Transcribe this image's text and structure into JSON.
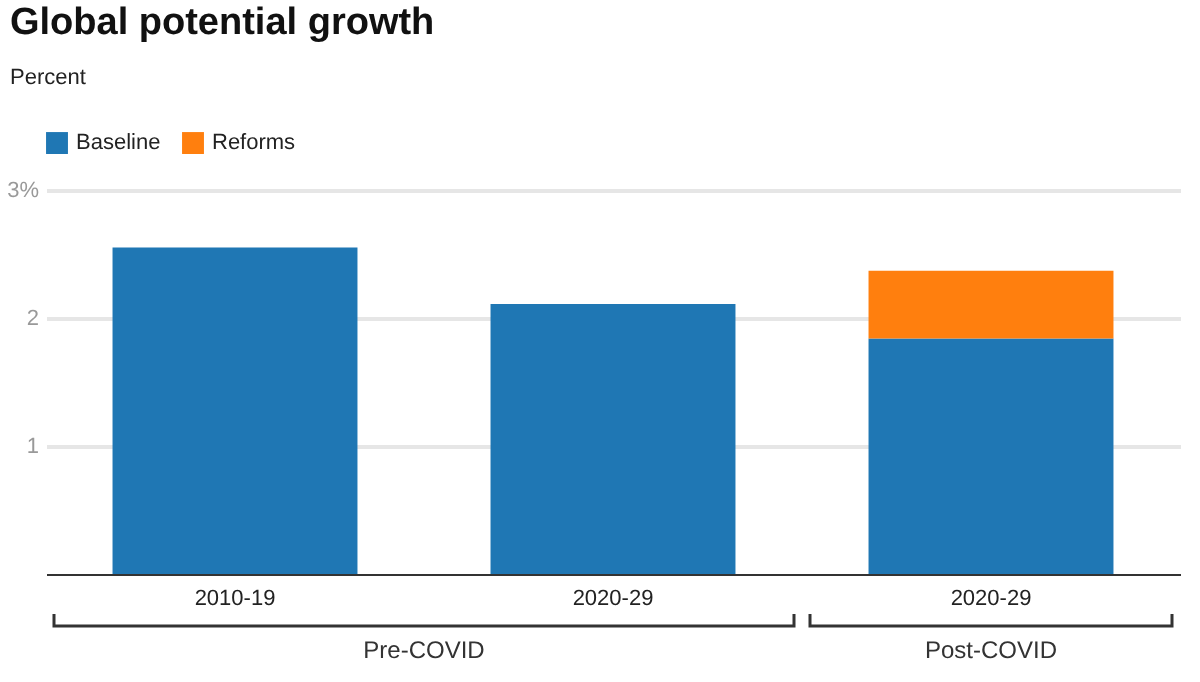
{
  "chart_data": {
    "type": "bar",
    "title": "Global potential growth",
    "subtitle": "Percent",
    "categories": [
      "2010-19",
      "2020-29",
      "2020-29"
    ],
    "series": [
      {
        "name": "Baseline",
        "color": "#1f77b4",
        "values": [
          2.55,
          2.11,
          1.84
        ]
      },
      {
        "name": "Reforms",
        "color": "#ff7f0e",
        "values": [
          null,
          null,
          0.53
        ]
      }
    ],
    "stacked": true,
    "ylim": [
      0,
      3
    ],
    "yticks": [
      1,
      2,
      {
        "value": 3,
        "label": "3%"
      }
    ],
    "grid": "y",
    "legend": "top left",
    "annotations": [
      "Pre-COVID",
      "Post-COVID"
    ]
  }
}
